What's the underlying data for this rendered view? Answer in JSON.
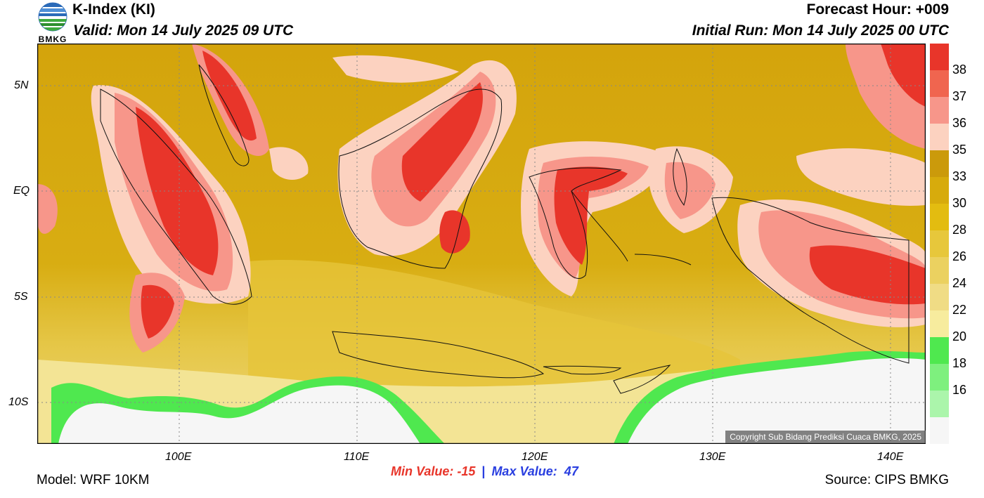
{
  "header": {
    "logo_text": "BMKG",
    "title": "K-Index (KI)",
    "valid": "Valid: Mon 14 July 2025 09 UTC",
    "forecast_hour": "Forecast Hour: +009",
    "initial_run": "Initial Run: Mon 14 July 2025 00 UTC"
  },
  "map": {
    "lat_labels": [
      "5N",
      "EQ",
      "5S",
      "10S"
    ],
    "lon_labels": [
      "100E",
      "110E",
      "120E",
      "130E",
      "140E"
    ],
    "copyright": "Copyright Sub Bidang Prediksi Cuaca BMKG, 2025"
  },
  "colorbar": {
    "ticks": [
      "38",
      "37",
      "36",
      "35",
      "33",
      "30",
      "28",
      "26",
      "24",
      "22",
      "20",
      "18",
      "16"
    ],
    "colors": [
      "#e8352a",
      "#f0654f",
      "#f7968a",
      "#fcd2c0",
      "#cb9a0b",
      "#d7ab0c",
      "#e3bc10",
      "#e7c73b",
      "#ebd160",
      "#f0dc85",
      "#f7ec9e",
      "#4fe84f",
      "#7ef07e",
      "#abf5ab",
      "#f6f6f6"
    ]
  },
  "footer": {
    "model": "Model: WRF 10KM",
    "min_value": "Min Value: -15",
    "separator": "|",
    "max_value": "Max Value:  47",
    "source": "Source: CIPS BMKG"
  }
}
